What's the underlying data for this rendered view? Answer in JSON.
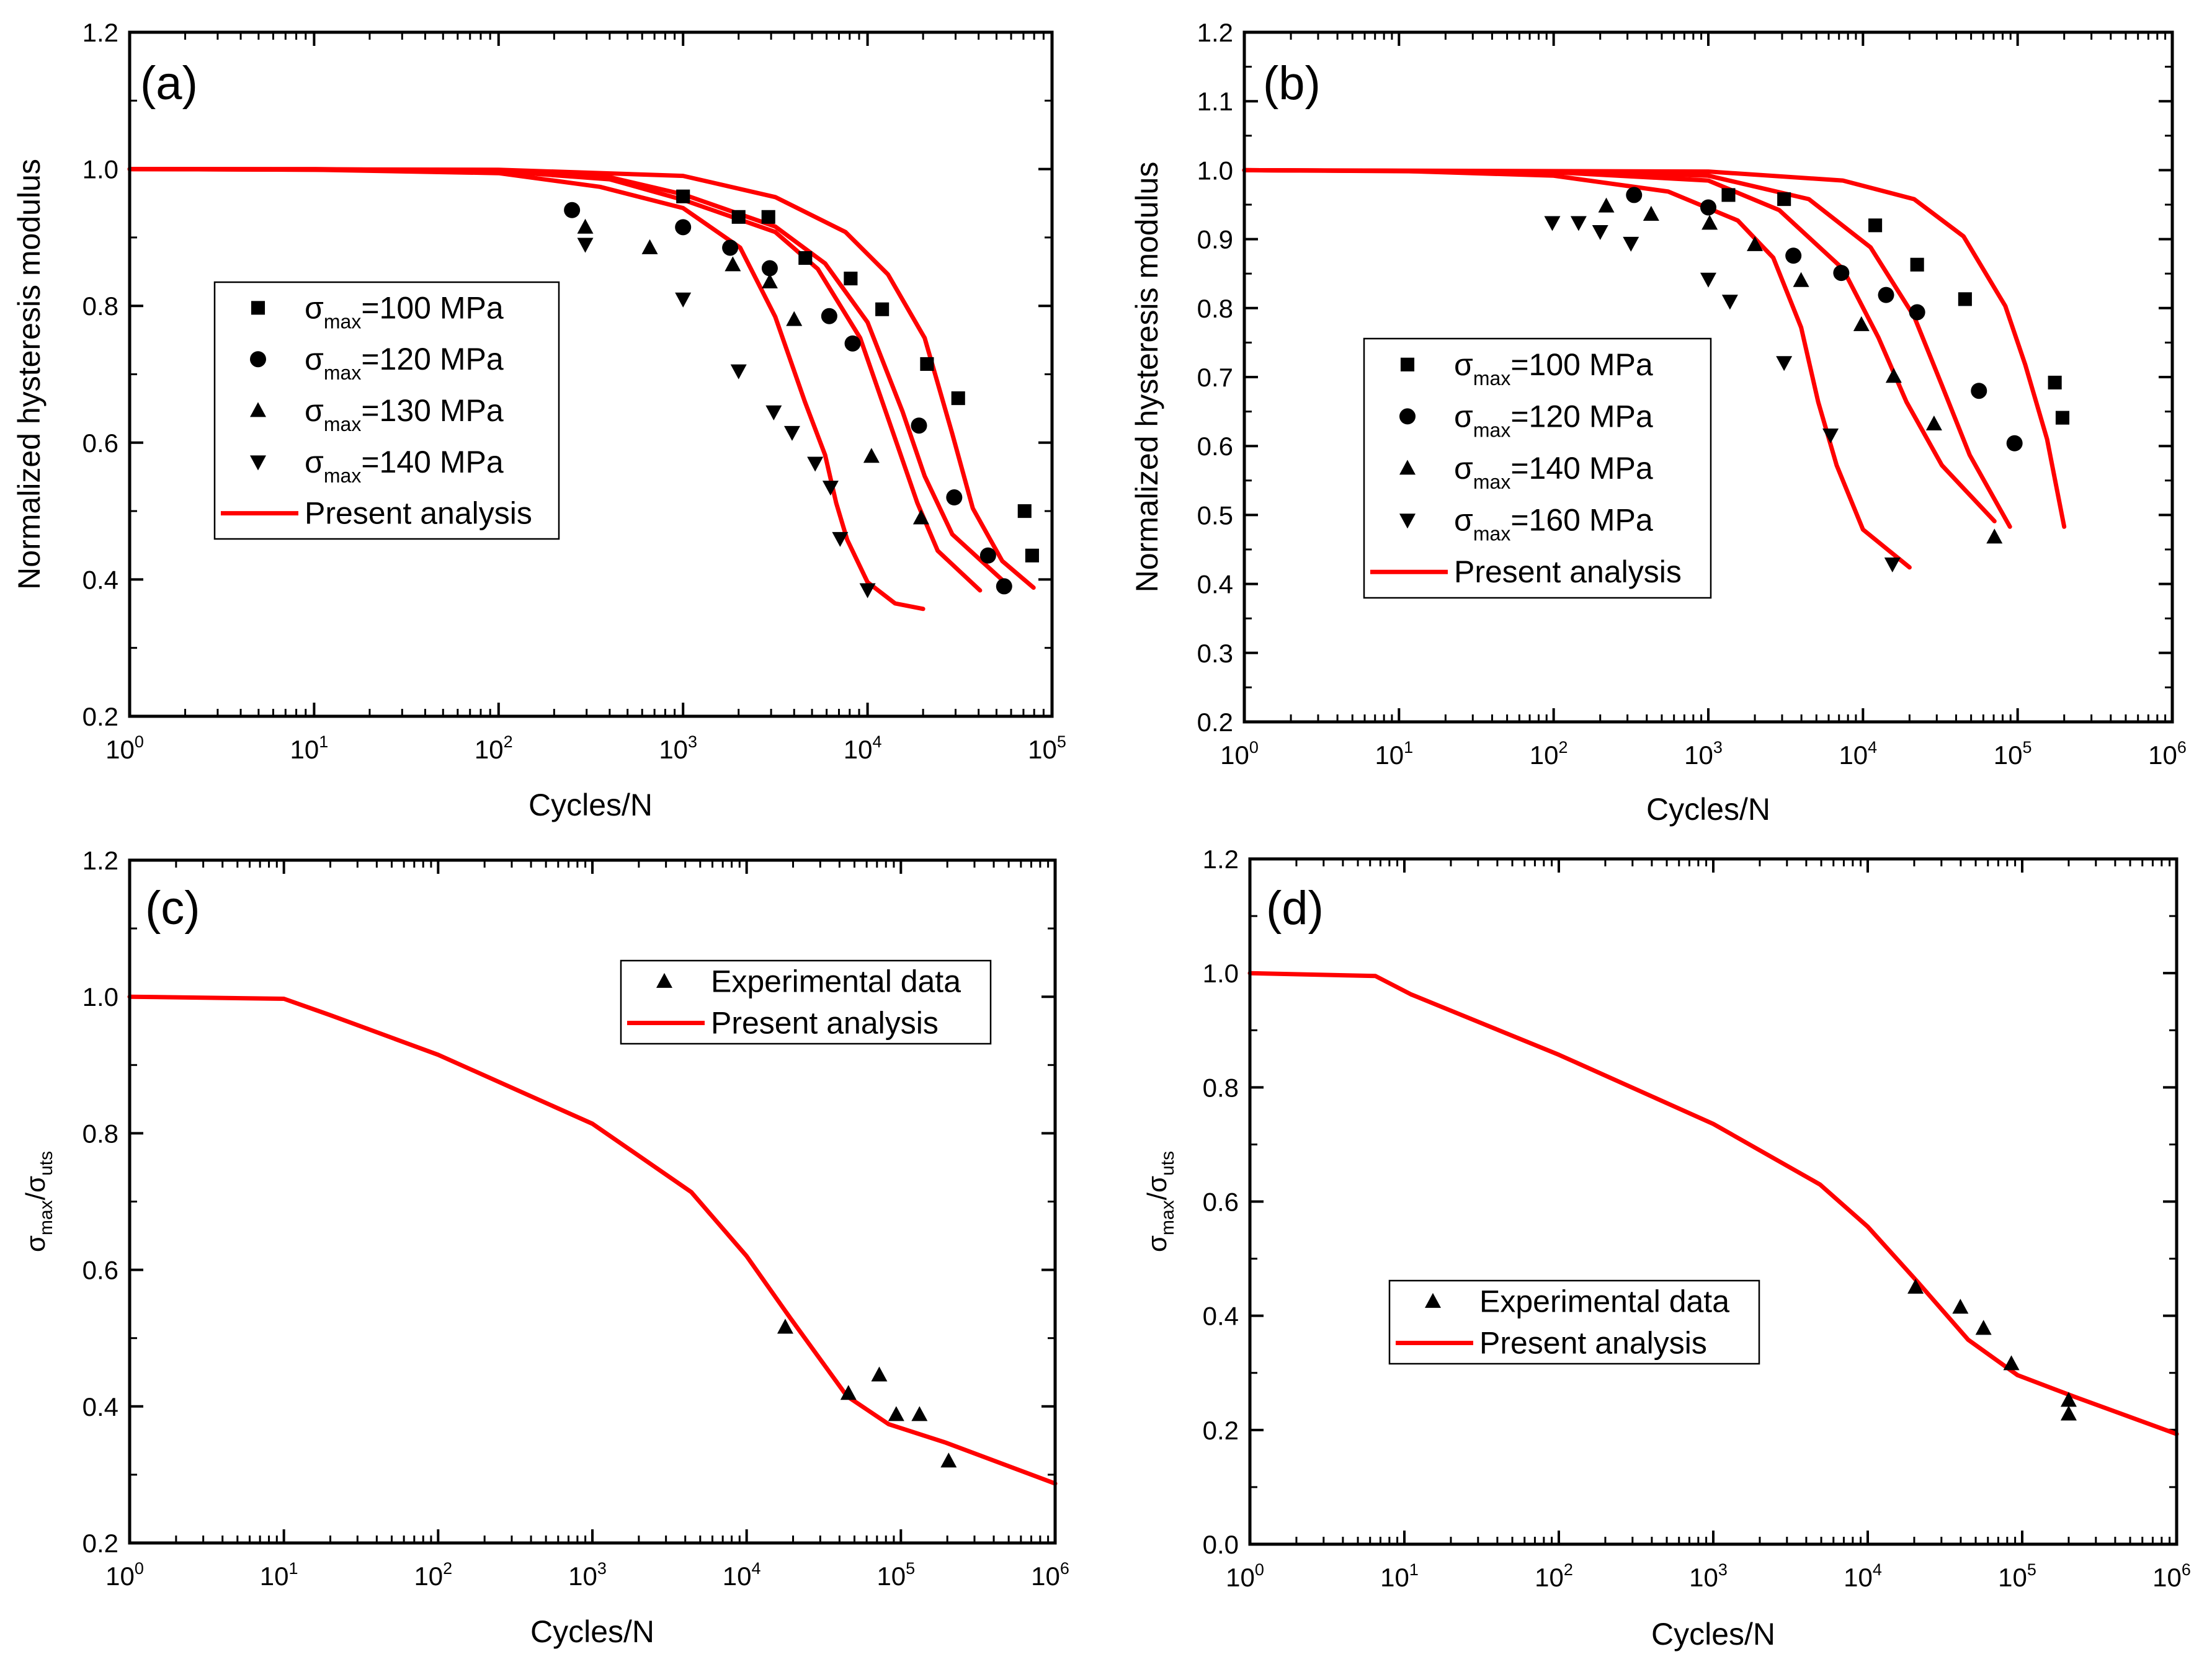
{
  "chart_data": [
    {
      "type": "scatter",
      "panel_label": "(a)",
      "xlabel": "Cycles/N",
      "ylabel": "Normalized hysteresis modulus",
      "xscale": "log",
      "xlim": [
        1,
        100000
      ],
      "ylim": [
        0.2,
        1.2
      ],
      "ymajor": 0.2,
      "legend_position": "center-left",
      "legend": [
        {
          "marker": "square",
          "symbol": "σ",
          "sub": "max",
          "text": "=100 MPa"
        },
        {
          "marker": "circle",
          "symbol": "σ",
          "sub": "max",
          "text": "=120 MPa"
        },
        {
          "marker": "triangle-up",
          "symbol": "σ",
          "sub": "max",
          "text": "=130 MPa"
        },
        {
          "marker": "triangle-down",
          "symbol": "σ",
          "sub": "max",
          "text": "=140 MPa"
        },
        {
          "marker": "line",
          "symbol": "",
          "sub": "",
          "text": "Present analysis"
        }
      ],
      "series": [
        {
          "name": "σmax=100 MPa",
          "marker": "square",
          "points": [
            [
              1000,
              0.96
            ],
            [
              2000,
              0.93
            ],
            [
              2900,
              0.93
            ],
            [
              4600,
              0.87
            ],
            [
              8100,
              0.84
            ],
            [
              12000,
              0.795
            ],
            [
              21000,
              0.715
            ],
            [
              31000,
              0.665
            ],
            [
              71000,
              0.5
            ],
            [
              78000,
              0.435
            ]
          ]
        },
        {
          "name": "σmax=120 MPa",
          "marker": "circle",
          "points": [
            [
              250,
              0.94
            ],
            [
              1000,
              0.915
            ],
            [
              1800,
              0.885
            ],
            [
              2950,
              0.855
            ],
            [
              6200,
              0.785
            ],
            [
              8300,
              0.745
            ],
            [
              19000,
              0.625
            ],
            [
              29500,
              0.52
            ],
            [
              45000,
              0.435
            ],
            [
              55000,
              0.39
            ]
          ]
        },
        {
          "name": "σmax=130 MPa",
          "marker": "triangle-up",
          "points": [
            [
              295,
              0.915
            ],
            [
              660,
              0.885
            ],
            [
              1860,
              0.86
            ],
            [
              2950,
              0.835
            ],
            [
              4000,
              0.78
            ],
            [
              10500,
              0.58
            ],
            [
              19500,
              0.49
            ]
          ]
        },
        {
          "name": "σmax=140 MPa",
          "marker": "triangle-down",
          "points": [
            [
              295,
              0.89
            ],
            [
              1000,
              0.81
            ],
            [
              2000,
              0.705
            ],
            [
              3100,
              0.645
            ],
            [
              3900,
              0.615
            ],
            [
              5200,
              0.57
            ],
            [
              6300,
              0.535
            ],
            [
              7100,
              0.46
            ],
            [
              10000,
              0.385
            ]
          ]
        }
      ],
      "curves": [
        {
          "name": "Present analysis 140 MPa",
          "points": [
            [
              1,
              1
            ],
            [
              10,
              0.999
            ],
            [
              100,
              0.994
            ],
            [
              355,
              0.974
            ],
            [
              1000,
              0.943
            ],
            [
              2040,
              0.885
            ],
            [
              3160,
              0.784
            ],
            [
              4570,
              0.66
            ],
            [
              5890,
              0.582
            ],
            [
              6760,
              0.512
            ],
            [
              7760,
              0.458
            ],
            [
              10000,
              0.396
            ],
            [
              14100,
              0.365
            ],
            [
              20000,
              0.357
            ]
          ]
        },
        {
          "name": "Present analysis 130 MPa",
          "points": [
            [
              1,
              1
            ],
            [
              10,
              1
            ],
            [
              100,
              0.997
            ],
            [
              400,
              0.985
            ],
            [
              1000,
              0.955
            ],
            [
              3160,
              0.908
            ],
            [
              5370,
              0.854
            ],
            [
              9120,
              0.753
            ],
            [
              14100,
              0.606
            ],
            [
              18600,
              0.512
            ],
            [
              24000,
              0.442
            ],
            [
              40700,
              0.384
            ]
          ]
        },
        {
          "name": "Present analysis 120 MPa",
          "points": [
            [
              1,
              1
            ],
            [
              100,
              0.998
            ],
            [
              400,
              0.988
            ],
            [
              1000,
              0.963
            ],
            [
              3160,
              0.916
            ],
            [
              5890,
              0.862
            ],
            [
              10000,
              0.776
            ],
            [
              15500,
              0.645
            ],
            [
              20400,
              0.551
            ],
            [
              28800,
              0.466
            ],
            [
              57500,
              0.392
            ]
          ]
        },
        {
          "name": "Present analysis 100 MPa",
          "points": [
            [
              1,
              1
            ],
            [
              100,
              0.999
            ],
            [
              1000,
              0.99
            ],
            [
              3160,
              0.959
            ],
            [
              7590,
              0.908
            ],
            [
              12900,
              0.846
            ],
            [
              20400,
              0.753
            ],
            [
              28800,
              0.613
            ],
            [
              37200,
              0.504
            ],
            [
              53700,
              0.427
            ],
            [
              79400,
              0.388
            ]
          ]
        }
      ]
    },
    {
      "type": "scatter",
      "panel_label": "(b)",
      "xlabel": "Cycles/N",
      "ylabel": "Normalized hysteresis modulus",
      "xscale": "log",
      "xlim": [
        1,
        1000000
      ],
      "ylim": [
        0.2,
        1.2
      ],
      "ymajor": 0.1,
      "legend_position": "center-left",
      "legend": [
        {
          "marker": "square",
          "symbol": "σ",
          "sub": "max",
          "text": "=100 MPa"
        },
        {
          "marker": "circle",
          "symbol": "σ",
          "sub": "max",
          "text": "=120 MPa"
        },
        {
          "marker": "triangle-up",
          "symbol": "σ",
          "sub": "max",
          "text": "=140 MPa"
        },
        {
          "marker": "triangle-down",
          "symbol": "σ",
          "sub": "max",
          "text": "=160 MPa"
        },
        {
          "marker": "line",
          "symbol": "",
          "sub": "",
          "text": "Present analysis"
        }
      ],
      "series": [
        {
          "name": "σmax=100 MPa",
          "marker": "square",
          "points": [
            [
              1350,
              0.964
            ],
            [
              3090,
              0.958
            ],
            [
              12000,
              0.92
            ],
            [
              22400,
              0.863
            ],
            [
              45700,
              0.813
            ],
            [
              174000,
              0.692
            ],
            [
              195000,
              0.641
            ]
          ]
        },
        {
          "name": "σmax=120 MPa",
          "marker": "circle",
          "points": [
            [
              331,
              0.964
            ],
            [
              1000,
              0.946
            ],
            [
              3550,
              0.876
            ],
            [
              7240,
              0.851
            ],
            [
              14100,
              0.819
            ],
            [
              22400,
              0.794
            ],
            [
              56200,
              0.68
            ],
            [
              95500,
              0.604
            ]
          ]
        },
        {
          "name": "σmax=140 MPa",
          "marker": "triangle-up",
          "points": [
            [
              219,
              0.948
            ],
            [
              427,
              0.936
            ],
            [
              1020,
              0.923
            ],
            [
              2000,
              0.892
            ],
            [
              3980,
              0.84
            ],
            [
              9770,
              0.776
            ],
            [
              15800,
              0.701
            ],
            [
              28800,
              0.632
            ],
            [
              70800,
              0.468
            ]
          ]
        },
        {
          "name": "σmax=160 MPa",
          "marker": "triangle-down",
          "points": [
            [
              98,
              0.924
            ],
            [
              145,
              0.924
            ],
            [
              200,
              0.911
            ],
            [
              316,
              0.894
            ],
            [
              1000,
              0.842
            ],
            [
              1380,
              0.81
            ],
            [
              3090,
              0.721
            ],
            [
              6170,
              0.616
            ],
            [
              15500,
              0.429
            ]
          ]
        }
      ],
      "curves": [
        {
          "name": "Present analysis 160 MPa",
          "points": [
            [
              1,
              1
            ],
            [
              10,
              0.999
            ],
            [
              100,
              0.992
            ],
            [
              550,
              0.969
            ],
            [
              1550,
              0.927
            ],
            [
              2630,
              0.873
            ],
            [
              3980,
              0.772
            ],
            [
              5130,
              0.664
            ],
            [
              6760,
              0.572
            ],
            [
              10000,
              0.479
            ],
            [
              20000,
              0.424
            ]
          ]
        },
        {
          "name": "Present analysis 140 MPa",
          "points": [
            [
              1,
              1
            ],
            [
              100,
              0.997
            ],
            [
              1000,
              0.985
            ],
            [
              2880,
              0.942
            ],
            [
              7410,
              0.857
            ],
            [
              12600,
              0.757
            ],
            [
              19100,
              0.664
            ],
            [
              32400,
              0.572
            ],
            [
              70800,
              0.491
            ]
          ]
        },
        {
          "name": "Present analysis 120 MPa",
          "points": [
            [
              1,
              1
            ],
            [
              100,
              0.998
            ],
            [
              1000,
              0.992
            ],
            [
              4470,
              0.958
            ],
            [
              11200,
              0.888
            ],
            [
              21400,
              0.788
            ],
            [
              32400,
              0.688
            ],
            [
              49000,
              0.587
            ],
            [
              89100,
              0.483
            ]
          ]
        },
        {
          "name": "Present analysis 100 MPa",
          "points": [
            [
              1,
              1
            ],
            [
              1000,
              0.998
            ],
            [
              7410,
              0.985
            ],
            [
              21400,
              0.958
            ],
            [
              44700,
              0.904
            ],
            [
              83200,
              0.803
            ],
            [
              112000,
              0.718
            ],
            [
              155000,
              0.61
            ],
            [
              200000,
              0.483
            ]
          ]
        }
      ]
    },
    {
      "type": "scatter",
      "panel_label": "(c)",
      "xlabel": "Cycles/N",
      "ylabel": {
        "symbol": "σ",
        "sub": "max",
        "slash": "/",
        "symbol2": "σ",
        "sub2": "uts"
      },
      "xscale": "log",
      "xlim": [
        1,
        1000000
      ],
      "ylim": [
        0.2,
        1.2
      ],
      "ymajor": 0.2,
      "legend_position": "top-right",
      "legend": [
        {
          "marker": "triangle-up",
          "symbol": "",
          "sub": "",
          "text": "Experimental data"
        },
        {
          "marker": "line",
          "symbol": "",
          "sub": "",
          "text": "Present analysis"
        }
      ],
      "series": [
        {
          "name": "Experimental data",
          "marker": "triangle-up",
          "points": [
            [
              17800,
              0.516
            ],
            [
              45700,
              0.419
            ],
            [
              72400,
              0.446
            ],
            [
              93300,
              0.388
            ],
            [
              132000,
              0.388
            ],
            [
              204000,
              0.32
            ]
          ]
        }
      ],
      "curves": [
        {
          "name": "Present analysis",
          "points": [
            [
              1,
              1.0
            ],
            [
              10,
              0.997
            ],
            [
              20,
              0.973
            ],
            [
              100,
              0.915
            ],
            [
              1000,
              0.814
            ],
            [
              4370,
              0.714
            ],
            [
              10000,
              0.62
            ],
            [
              19100,
              0.53
            ],
            [
              44700,
              0.415
            ],
            [
              83200,
              0.374
            ],
            [
              195000,
              0.347
            ],
            [
              1000000,
              0.287
            ]
          ]
        }
      ]
    },
    {
      "type": "scatter",
      "panel_label": "(d)",
      "xlabel": "Cycles/N",
      "ylabel": {
        "symbol": "σ",
        "sub": "max",
        "slash": "/",
        "symbol2": "σ",
        "sub2": "uts"
      },
      "xscale": "log",
      "xlim": [
        1,
        1000000
      ],
      "ylim": [
        0.0,
        1.2
      ],
      "ymajor": 0.2,
      "legend_position": "center",
      "legend": [
        {
          "marker": "triangle-up",
          "symbol": "",
          "sub": "",
          "text": "Experimental data"
        },
        {
          "marker": "line",
          "symbol": "",
          "sub": "",
          "text": "Present analysis"
        }
      ],
      "series": [
        {
          "name": "Experimental data",
          "marker": "triangle-up",
          "points": [
            [
              20400,
              0.45
            ],
            [
              39800,
              0.415
            ],
            [
              56200,
              0.378
            ],
            [
              85100,
              0.316
            ],
            [
              200000,
              0.252
            ],
            [
              200000,
              0.228
            ]
          ]
        }
      ],
      "curves": [
        {
          "name": "Present analysis",
          "points": [
            [
              1,
              1.0
            ],
            [
              6.5,
              0.995
            ],
            [
              11,
              0.963
            ],
            [
              100,
              0.857
            ],
            [
              1000,
              0.736
            ],
            [
              4900,
              0.63
            ],
            [
              10000,
              0.556
            ],
            [
              21400,
              0.457
            ],
            [
              44700,
              0.358
            ],
            [
              93300,
              0.296
            ],
            [
              214000,
              0.259
            ],
            [
              1000000,
              0.193
            ]
          ]
        }
      ]
    }
  ],
  "colors": {
    "curve": "#ff0000",
    "marker": "#000000",
    "axis": "#000000"
  }
}
